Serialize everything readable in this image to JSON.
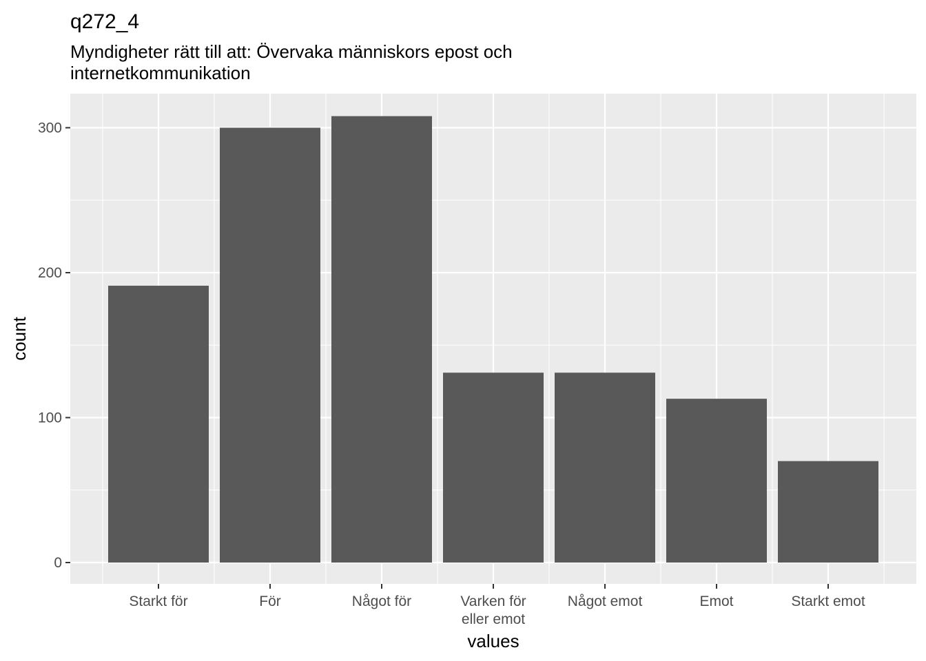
{
  "chart_data": {
    "type": "bar",
    "title": "q272_4",
    "subtitle_lines": [
      "Myndigheter rätt till att: Övervaka människors epost och",
      "internetkommunikation"
    ],
    "xlabel": "values",
    "ylabel": "count",
    "categories": [
      [
        "Starkt för"
      ],
      [
        "För"
      ],
      [
        "Något för"
      ],
      [
        "Varken för",
        "eller emot"
      ],
      [
        "Något emot"
      ],
      [
        "Emot"
      ],
      [
        "Starkt emot"
      ]
    ],
    "values": [
      191,
      300,
      308,
      131,
      131,
      113,
      70
    ],
    "ylim": [
      0,
      315
    ],
    "yticks": [
      0,
      100,
      200,
      300
    ],
    "grid": true,
    "colors": {
      "panel": "#ebebeb",
      "grid": "#ffffff",
      "bar": "#595959",
      "tick": "#333333",
      "tick_text": "#4d4d4d"
    }
  }
}
